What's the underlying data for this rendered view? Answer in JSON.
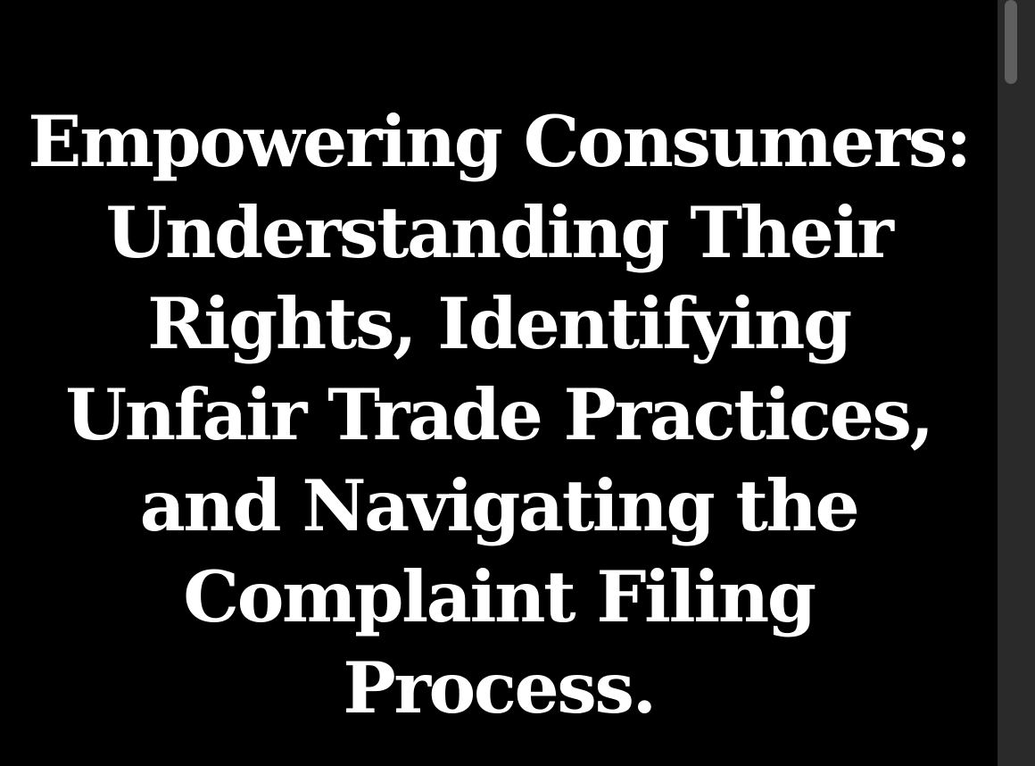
{
  "page": {
    "title": "Empowering Consumers: Understanding Their Rights, Identifying Unfair Trade Practices, and Navigating the Complaint Filing Process."
  },
  "colors": {
    "background": "#000000",
    "text": "#ffffff",
    "scrollbar_track": "#2a2a2a",
    "scrollbar_thumb": "#5f5f5f"
  }
}
